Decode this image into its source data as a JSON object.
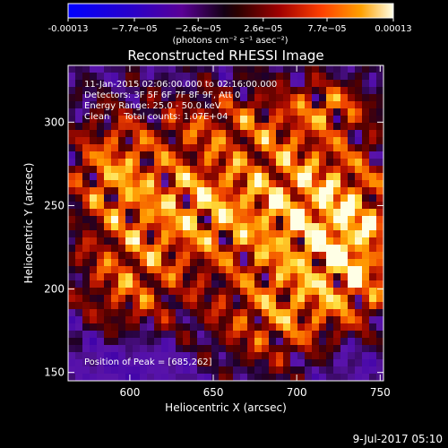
{
  "chart_data": {
    "type": "heatmap",
    "title": "Reconstructed RHESSI Image",
    "xlabel": "Heliocentric X (arcsec)",
    "ylabel": "Heliocentric Y (arcsec)",
    "xlim": [
      563,
      752
    ],
    "ylim": [
      145,
      334
    ],
    "x_ticks": [
      "600",
      "650",
      "700",
      "750"
    ],
    "x_tick_values": [
      600,
      650,
      700,
      750
    ],
    "y_ticks": [
      "150",
      "200",
      "250",
      "300"
    ],
    "y_tick_values": [
      150,
      200,
      250,
      300
    ],
    "colorbar": {
      "vmin": -0.00013,
      "vmax": 0.00013,
      "tick_labels": [
        "-0.00013",
        "−7.7e−05",
        "−2.6e−05",
        "2.6e−05",
        "7.7e−05",
        "0.00013"
      ],
      "tick_values": [
        -0.00013,
        -7.7e-05,
        -2.6e-05,
        2.6e-05,
        7.7e-05,
        0.00013
      ],
      "unit_label": "(photons cm⁻² s⁻¹ asec⁻²)"
    },
    "annotations": [
      "11-Jan-2015 02:06:00.000 to 02:16:00.000",
      "Detectors: 3F 5F 6F 7F 8F 9F, Att 0",
      "Energy Range: 25.0 - 50.0 keV",
      "Clean     Total counts: 1.07E+04"
    ],
    "peak_label": "Position of Peak = [685,262]",
    "peak": [
      685,
      262
    ],
    "grid": false
  },
  "footer": {
    "date": "9-Jul-2017 05:10"
  }
}
